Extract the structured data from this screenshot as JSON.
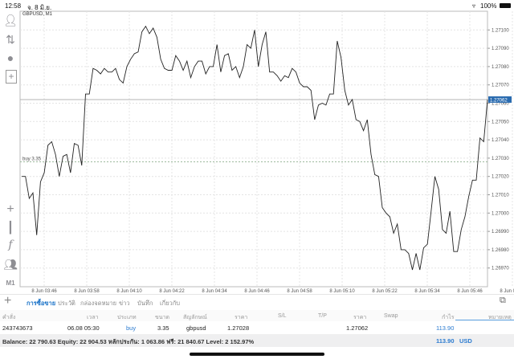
{
  "status_bar": {
    "time": "12:58",
    "date": "จ. 8 มิ.ย.",
    "battery": "100%"
  },
  "sidebar": {
    "icons": [
      "person-icon",
      "trade-arrows-icon",
      "chat-icon",
      "new-document-icon",
      "crosshair-icon",
      "candlestick-icon",
      "function-icon",
      "people-icon"
    ],
    "timeframe": "M1"
  },
  "chart_data": {
    "type": "line",
    "title": "GBPUSD, M1",
    "x_tick_labels": [
      "8 Jun 03:46",
      "8 Jun 03:58",
      "8 Jun 04:10",
      "8 Jun 04:22",
      "8 Jun 04:34",
      "8 Jun 04:46",
      "8 Jun 04:58",
      "8 Jun 05:10",
      "8 Jun 05:22",
      "8 Jun 05:34",
      "8 Jun 05:46",
      "8 Jun 05:58"
    ],
    "y_tick_labels": [
      "1.27100",
      "1.27090",
      "1.27080",
      "1.27070",
      "1.27060",
      "1.27050",
      "1.27040",
      "1.27030",
      "1.27020",
      "1.27010",
      "1.27000",
      "1.26990",
      "1.26980",
      "1.26970"
    ],
    "ylim": [
      1.26955,
      1.27116
    ],
    "current_price": {
      "label": "1.27062",
      "value": 1.27062,
      "color": "#2b6cb0"
    },
    "order_line": {
      "label": "buy 3.35",
      "value": 1.27028
    },
    "series": [
      {
        "name": "GBPUSD close",
        "values": [
          1.2702,
          1.2702,
          1.27008,
          1.27011,
          1.26988,
          1.27017,
          1.27022,
          1.27037,
          1.27039,
          1.27032,
          1.2702,
          1.27031,
          1.27032,
          1.27022,
          1.27038,
          1.27037,
          1.27026,
          1.27065,
          1.27065,
          1.27079,
          1.27078,
          1.27076,
          1.27079,
          1.27077,
          1.27077,
          1.27079,
          1.27073,
          1.27071,
          1.2708,
          1.27084,
          1.27087,
          1.27088,
          1.27099,
          1.27102,
          1.27098,
          1.27101,
          1.27096,
          1.27084,
          1.27079,
          1.27078,
          1.27078,
          1.27086,
          1.27083,
          1.27078,
          1.27083,
          1.27074,
          1.2708,
          1.27083,
          1.27083,
          1.27076,
          1.2708,
          1.2708,
          1.27092,
          1.27077,
          1.27086,
          1.27087,
          1.27078,
          1.2708,
          1.27074,
          1.2708,
          1.27092,
          1.2709,
          1.271,
          1.2708,
          1.27092,
          1.27099,
          1.27077,
          1.27077,
          1.27075,
          1.27072,
          1.27075,
          1.27074,
          1.27079,
          1.27077,
          1.27071,
          1.27069,
          1.27069,
          1.27067,
          1.27051,
          1.27059,
          1.2706,
          1.27059,
          1.27065,
          1.27065,
          1.27094,
          1.27085,
          1.27067,
          1.27059,
          1.27062,
          1.27051,
          1.2705,
          1.27045,
          1.27051,
          1.27032,
          1.27021,
          1.2702,
          1.27003,
          1.27,
          1.26998,
          1.26989,
          1.26994,
          1.2698,
          1.2698,
          1.26978,
          1.26969,
          1.26978,
          1.26969,
          1.26981,
          1.26983,
          1.27001,
          1.2702,
          1.27013,
          1.26991,
          1.26989,
          1.27001,
          1.26979,
          1.26979,
          1.26991,
          1.26998,
          1.27009,
          1.27018,
          1.27018,
          1.27041,
          1.27039,
          1.27062
        ]
      }
    ]
  },
  "bottom": {
    "tabs": [
      "การซื้อขาย",
      "ประวัติ",
      "กล่องจดหมาย",
      "ข่าว",
      "บันทึก",
      "เกี่ยวกับ"
    ],
    "headers": [
      "คำสั่ง",
      "เวลา",
      "ประเภท",
      "ขนาด",
      "สัญลักษณ์",
      "ราคา",
      "S/L",
      "T/P",
      "ราคา",
      "Swap",
      "กำไร",
      "หมายเหตุ"
    ],
    "row": {
      "order": "243743673",
      "time": "06.08 05:30",
      "type": "buy",
      "volume": "3.35",
      "symbol": "gbpusd",
      "open_price": "1.27028",
      "current_price": "1.27062",
      "profit": "113.90"
    },
    "summary": "Balance: 22 790.63 Equity: 22 904.53 หลักประกัน: 1 063.86 ฟรี: 21 840.67 Level: 2 152.97%",
    "total_profit": "113.90",
    "currency": "USD"
  }
}
